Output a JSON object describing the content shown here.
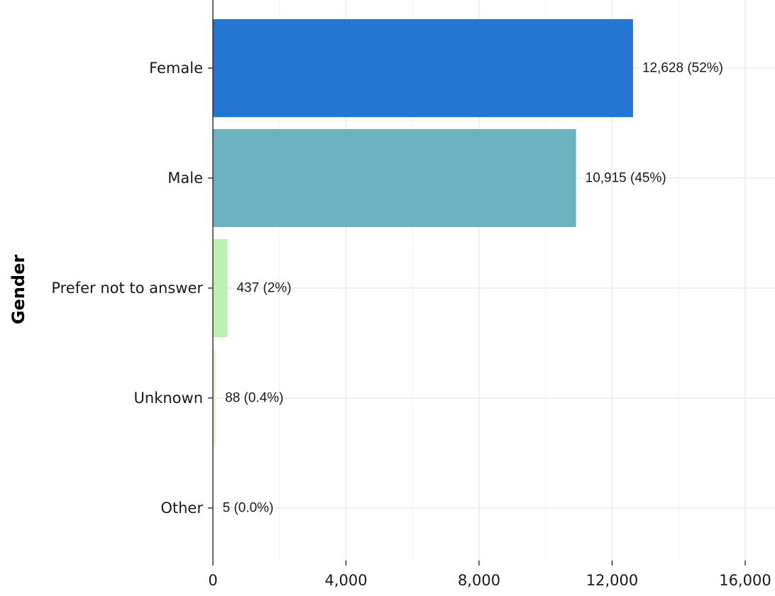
{
  "chart_data": {
    "type": "bar",
    "orientation": "horizontal",
    "categories": [
      "Female",
      "Male",
      "Prefer not to answer",
      "Unknown",
      "Other"
    ],
    "values": [
      12628,
      10915,
      437,
      88,
      5
    ],
    "data_labels": [
      "12,628 (52%)",
      "10,915 (45%)",
      "437 (2%)",
      "88 (0.4%)",
      "5 (0.0%)"
    ],
    "colors": [
      "#2476d2",
      "#6db2c1",
      "#bdf0b3",
      "#eaf7c6",
      "#f6fbe7"
    ],
    "ylabel": "Gender",
    "xlim": [
      0,
      16000
    ],
    "x_ticks": [
      0,
      4000,
      8000,
      12000,
      16000
    ],
    "x_tick_labels": [
      "0",
      "4,000",
      "8,000",
      "12,000",
      "16,000"
    ],
    "grid": true
  }
}
